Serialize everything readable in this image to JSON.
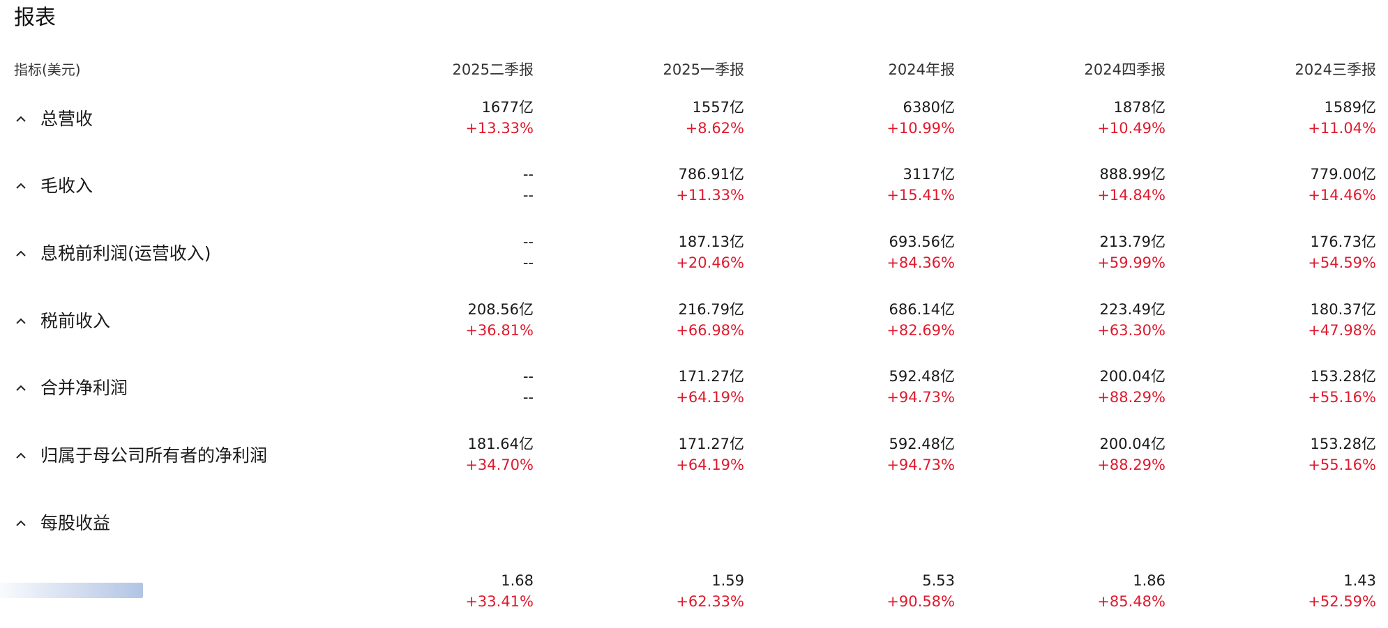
{
  "title": "报表",
  "header": {
    "label": "指标(美元)",
    "columns": [
      "2025二季报",
      "2025一季报",
      "2024年报",
      "2024四季报",
      "2024三季报"
    ]
  },
  "rows": [
    {
      "label": "总营收",
      "cells": [
        {
          "value": "1677亿",
          "change": "+13.33%"
        },
        {
          "value": "1557亿",
          "change": "+8.62%"
        },
        {
          "value": "6380亿",
          "change": "+10.99%"
        },
        {
          "value": "1878亿",
          "change": "+10.49%"
        },
        {
          "value": "1589亿",
          "change": "+11.04%"
        }
      ]
    },
    {
      "label": "毛收入",
      "cells": [
        {
          "value": "--",
          "change": "--"
        },
        {
          "value": "786.91亿",
          "change": "+11.33%"
        },
        {
          "value": "3117亿",
          "change": "+15.41%"
        },
        {
          "value": "888.99亿",
          "change": "+14.84%"
        },
        {
          "value": "779.00亿",
          "change": "+14.46%"
        }
      ]
    },
    {
      "label": "息税前利润(运营收入)",
      "cells": [
        {
          "value": "--",
          "change": "--"
        },
        {
          "value": "187.13亿",
          "change": "+20.46%"
        },
        {
          "value": "693.56亿",
          "change": "+84.36%"
        },
        {
          "value": "213.79亿",
          "change": "+59.99%"
        },
        {
          "value": "176.73亿",
          "change": "+54.59%"
        }
      ]
    },
    {
      "label": "税前收入",
      "cells": [
        {
          "value": "208.56亿",
          "change": "+36.81%"
        },
        {
          "value": "216.79亿",
          "change": "+66.98%"
        },
        {
          "value": "686.14亿",
          "change": "+82.69%"
        },
        {
          "value": "223.49亿",
          "change": "+63.30%"
        },
        {
          "value": "180.37亿",
          "change": "+47.98%"
        }
      ]
    },
    {
      "label": "合并净利润",
      "cells": [
        {
          "value": "--",
          "change": "--"
        },
        {
          "value": "171.27亿",
          "change": "+64.19%"
        },
        {
          "value": "592.48亿",
          "change": "+94.73%"
        },
        {
          "value": "200.04亿",
          "change": "+88.29%"
        },
        {
          "value": "153.28亿",
          "change": "+55.16%"
        }
      ]
    },
    {
      "label": "归属于母公司所有者的净利润",
      "cells": [
        {
          "value": "181.64亿",
          "change": "+34.70%"
        },
        {
          "value": "171.27亿",
          "change": "+64.19%"
        },
        {
          "value": "592.48亿",
          "change": "+94.73%"
        },
        {
          "value": "200.04亿",
          "change": "+88.29%"
        },
        {
          "value": "153.28亿",
          "change": "+55.16%"
        }
      ]
    },
    {
      "label": "每股收益",
      "cells": []
    }
  ],
  "eps_subrow": {
    "cells": [
      {
        "value": "1.68",
        "change": "+33.41%"
      },
      {
        "value": "1.59",
        "change": "+62.33%"
      },
      {
        "value": "5.53",
        "change": "+90.58%"
      },
      {
        "value": "1.86",
        "change": "+85.48%"
      },
      {
        "value": "1.43",
        "change": "+52.59%"
      }
    ]
  },
  "colors": {
    "positive": "#e0192d",
    "text": "#1a1a1a"
  },
  "icons": {
    "row_toggle": "chevron-up-icon"
  }
}
